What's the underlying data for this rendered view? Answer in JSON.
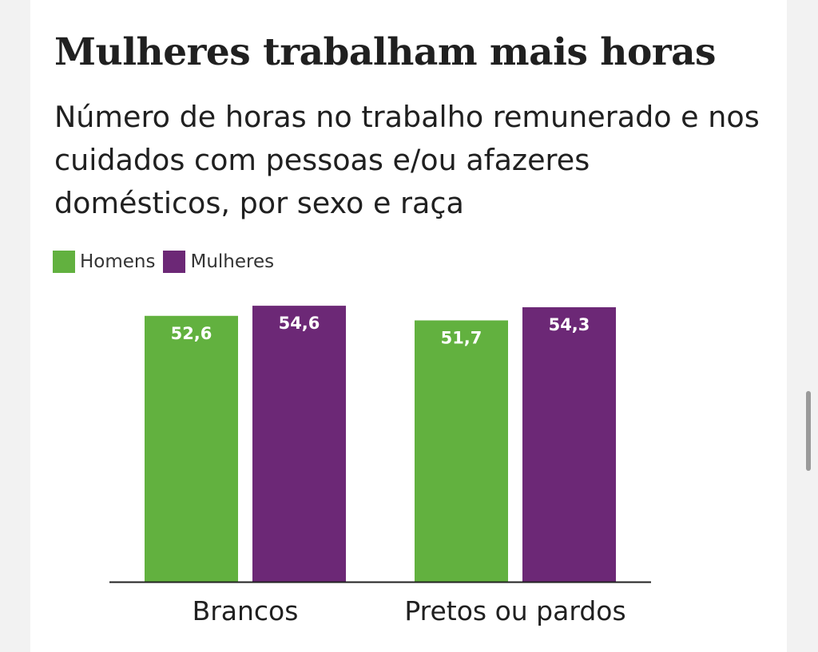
{
  "chart_data": {
    "type": "bar",
    "title": "Mulheres trabalham mais horas",
    "subtitle": "Número de horas no trabalho remunerado e nos cuidados com pessoas e/ou afazeres domésticos, por sexo e raça",
    "categories": [
      "Brancos",
      "Pretos ou pardos"
    ],
    "series": [
      {
        "name": "Homens",
        "color": "#62b13f",
        "values": [
          52.6,
          51.7
        ],
        "labels": [
          "52,6",
          "51,7"
        ]
      },
      {
        "name": "Mulheres",
        "color": "#6c2876",
        "values": [
          54.6,
          54.3
        ],
        "labels": [
          "54,6",
          "54,3"
        ]
      }
    ],
    "ylim": [
      0,
      55
    ],
    "legend": "top-left",
    "grid": false
  }
}
